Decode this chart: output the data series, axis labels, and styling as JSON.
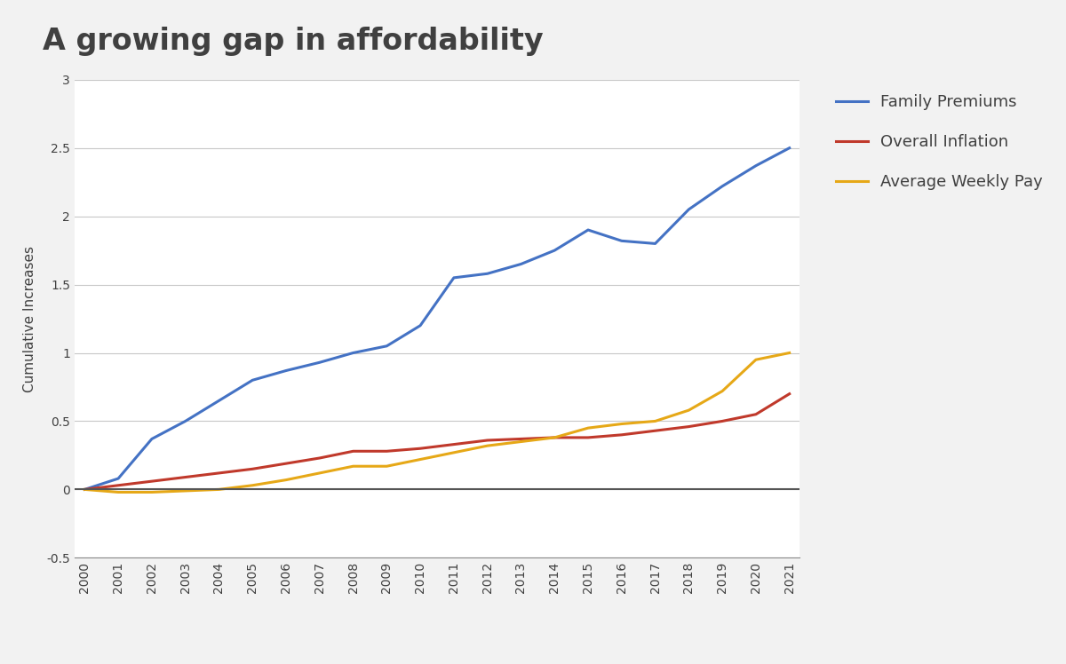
{
  "title": "A growing gap in affordability",
  "ylabel": "Cumulative Increases",
  "years": [
    2000,
    2001,
    2002,
    2003,
    2004,
    2005,
    2006,
    2007,
    2008,
    2009,
    2010,
    2011,
    2012,
    2013,
    2014,
    2015,
    2016,
    2017,
    2018,
    2019,
    2020,
    2021
  ],
  "family_premiums": [
    0.0,
    0.08,
    0.37,
    0.5,
    0.65,
    0.8,
    0.87,
    0.93,
    1.0,
    1.05,
    1.2,
    1.55,
    1.58,
    1.65,
    1.75,
    1.9,
    1.82,
    1.8,
    2.05,
    2.22,
    2.37,
    2.5
  ],
  "overall_inflation": [
    0.0,
    0.03,
    0.06,
    0.09,
    0.12,
    0.15,
    0.19,
    0.23,
    0.28,
    0.28,
    0.3,
    0.33,
    0.36,
    0.37,
    0.38,
    0.38,
    0.4,
    0.43,
    0.46,
    0.5,
    0.55,
    0.7
  ],
  "avg_weekly_pay": [
    0.0,
    -0.02,
    -0.02,
    -0.01,
    0.0,
    0.03,
    0.07,
    0.12,
    0.17,
    0.17,
    0.22,
    0.27,
    0.32,
    0.35,
    0.38,
    0.45,
    0.48,
    0.5,
    0.58,
    0.72,
    0.95,
    1.0
  ],
  "family_premiums_color": "#4472C4",
  "overall_inflation_color": "#C0392B",
  "avg_weekly_pay_color": "#E6A817",
  "zero_line_color": "#555555",
  "background_color": "#F2F2F2",
  "plot_bg_color": "#FFFFFF",
  "grid_color": "#C8C8C8",
  "text_color": "#404040",
  "ylim": [
    -0.5,
    3.0
  ],
  "yticks": [
    -0.5,
    0.0,
    0.5,
    1.0,
    1.5,
    2.0,
    2.5,
    3.0
  ],
  "title_fontsize": 24,
  "label_fontsize": 11,
  "tick_fontsize": 10,
  "legend_fontsize": 13,
  "line_width": 2.2
}
